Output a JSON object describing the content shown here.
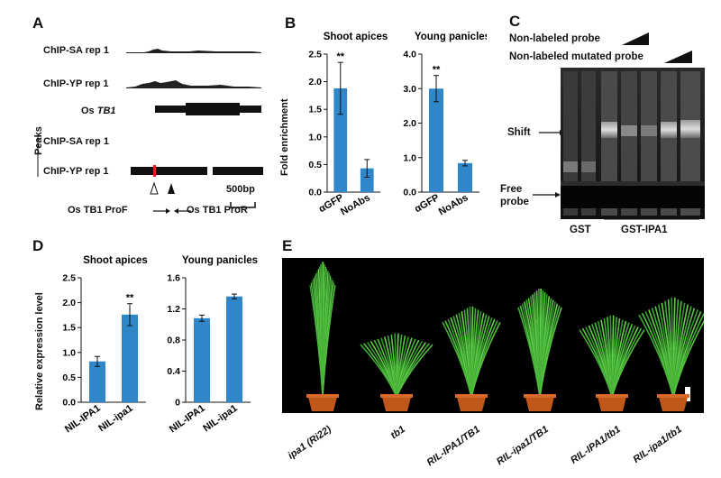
{
  "panels": {
    "a": {
      "letter": "A",
      "tracks": [
        {
          "label": "ChIP-SA rep 1"
        },
        {
          "label": "ChIP-YP rep 1"
        }
      ],
      "gene_label_prefix": "Os ",
      "gene_label_italic": "TB1",
      "peaks_label": "Peaks",
      "peak_tracks": [
        {
          "label": "ChIP-SA rep 1"
        },
        {
          "label": "ChIP-YP rep 1"
        }
      ],
      "scale": "500bp",
      "primer_f": "Os TB1 ProF",
      "primer_r": "Os TB1 ProR"
    },
    "b": {
      "letter": "B",
      "ylabel": "Fold enrichment"
    },
    "c": {
      "letter": "C",
      "probe1": "Non-labeled probe",
      "probe2": "Non-labeled mutated probe",
      "shift": "Shift",
      "free1": "Free",
      "free2": "probe",
      "gst": "GST",
      "gst_ipa1": "GST-IPA1"
    },
    "d": {
      "letter": "D",
      "ylabel": "Relative expression level"
    },
    "e": {
      "letter": "E",
      "plants": [
        {
          "label": "ipa1 (Ri22)"
        },
        {
          "label": "tb1"
        },
        {
          "label": "RIL-IPA1/TB1"
        },
        {
          "label": "RIL-ipa1/TB1"
        },
        {
          "label": "RIL-IPA1/tb1"
        },
        {
          "label": "RIL-ipa1/tb1"
        }
      ]
    }
  },
  "chart_data": [
    {
      "type": "bar",
      "panel": "B",
      "title": "Shoot apices",
      "categories": [
        "αGFP",
        "NoAbs"
      ],
      "values": [
        1.88,
        0.43
      ],
      "errors": [
        0.47,
        0.16
      ],
      "significance": [
        "**",
        ""
      ],
      "ylabel": "Fold enrichment",
      "ylim": [
        0,
        2.5
      ],
      "yticks": [
        "0.0",
        "0.5",
        "1.0",
        "1.5",
        "2.0",
        "2.5"
      ],
      "color": "#2f86c8"
    },
    {
      "type": "bar",
      "panel": "B",
      "title": "Young panicles",
      "categories": [
        "αGFP",
        "NoAbs"
      ],
      "values": [
        3.0,
        0.84
      ],
      "errors": [
        0.38,
        0.08
      ],
      "significance": [
        "**",
        ""
      ],
      "ylabel": "",
      "ylim": [
        0,
        4.0
      ],
      "yticks": [
        "0.0",
        "1.0",
        "2.0",
        "3.0",
        "4.0"
      ],
      "color": "#2f86c8"
    },
    {
      "type": "bar",
      "panel": "D",
      "title": "Shoot apices",
      "categories": [
        "NIL-IPA1",
        "NIL-ipa1"
      ],
      "values": [
        0.82,
        1.76
      ],
      "errors": [
        0.1,
        0.22
      ],
      "significance": [
        "",
        "**"
      ],
      "ylabel": "Relative expression level",
      "ylim": [
        0,
        2.5
      ],
      "yticks": [
        "0.0",
        "0.5",
        "1.0",
        "1.5",
        "2.0",
        "2.5"
      ],
      "color": "#2f86c8"
    },
    {
      "type": "bar",
      "panel": "D",
      "title": "Young panicles",
      "categories": [
        "NIL-IPA1",
        "NIL-ipa1"
      ],
      "values": [
        1.08,
        1.36
      ],
      "errors": [
        0.04,
        0.03
      ],
      "significance": [
        "",
        ""
      ],
      "ylabel": "",
      "ylim": [
        0,
        1.6
      ],
      "yticks": [
        "0",
        "0.4",
        "0.8",
        "1.2",
        "1.6"
      ],
      "color": "#2f86c8"
    }
  ]
}
